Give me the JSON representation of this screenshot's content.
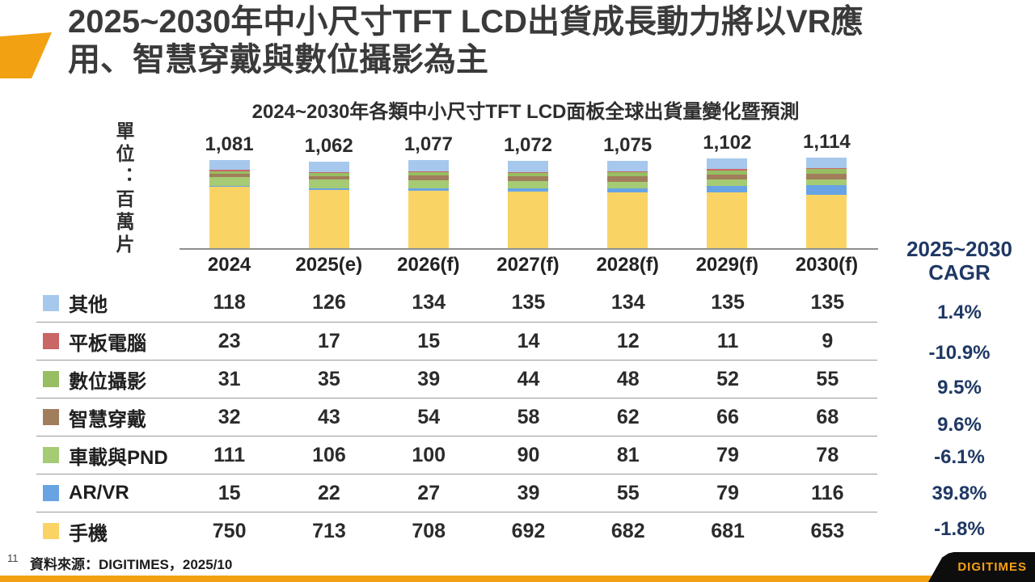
{
  "slide": {
    "title_lines": {
      "0": "2025~2030年中小尺寸TFT LCD出貨成長動力將以VR應",
      "1": "用、智慧穿戴與數位攝影為主"
    }
  },
  "chart_data": {
    "type": "bar",
    "stacked": true,
    "title": "2024~2030年各類中小尺寸TFT LCD面板全球出貨量變化暨預測",
    "unit_label": "單位：百萬片",
    "categories": [
      "2024",
      "2025(e)",
      "2026(f)",
      "2027(f)",
      "2028(f)",
      "2029(f)",
      "2030(f)"
    ],
    "totals": [
      "1,081",
      "1,062",
      "1,077",
      "1,072",
      "1,075",
      "1,102",
      "1,114"
    ],
    "series": [
      {
        "name": "其他",
        "color": "#A6C8EC",
        "values": [
          118,
          126,
          134,
          135,
          134,
          135,
          135
        ],
        "cagr": "1.4%"
      },
      {
        "name": "平板電腦",
        "color": "#C96666",
        "values": [
          23,
          17,
          15,
          14,
          12,
          11,
          9
        ],
        "cagr": "-10.9%"
      },
      {
        "name": "數位攝影",
        "color": "#97BE62",
        "values": [
          31,
          35,
          39,
          44,
          48,
          52,
          55
        ],
        "cagr": "9.5%"
      },
      {
        "name": "智慧穿戴",
        "color": "#A17E5B",
        "values": [
          32,
          43,
          54,
          58,
          62,
          66,
          68
        ],
        "cagr": "9.6%"
      },
      {
        "name": "車載與PND",
        "color": "#A5CB74",
        "values": [
          111,
          106,
          100,
          90,
          81,
          79,
          78
        ],
        "cagr": "-6.1%"
      },
      {
        "name": "AR/VR",
        "color": "#68A4E4",
        "values": [
          15,
          22,
          27,
          39,
          55,
          79,
          116
        ],
        "cagr": "39.8%"
      },
      {
        "name": "手機",
        "color": "#FAD365",
        "values": [
          750,
          713,
          708,
          692,
          682,
          681,
          653
        ],
        "cagr": "-1.8%"
      }
    ],
    "cagr_header_lines": {
      "0": "2025~2030",
      "1": "CAGR"
    },
    "legend_position": "left-table",
    "stack_order_bottom_to_top": [
      "手機",
      "AR/VR",
      "車載與PND",
      "智慧穿戴",
      "數位攝影",
      "平板電腦",
      "其他"
    ]
  },
  "footer": {
    "page_number": "11",
    "source": "資料來源：DIGITIMES，2025/10",
    "logo": "DIGITIMES"
  },
  "colors": {
    "accent_orange": "#F2A112",
    "cagr_navy": "#1F3864",
    "banner_black": "#0D0D0D",
    "title_gray": "#3A3A3A"
  }
}
